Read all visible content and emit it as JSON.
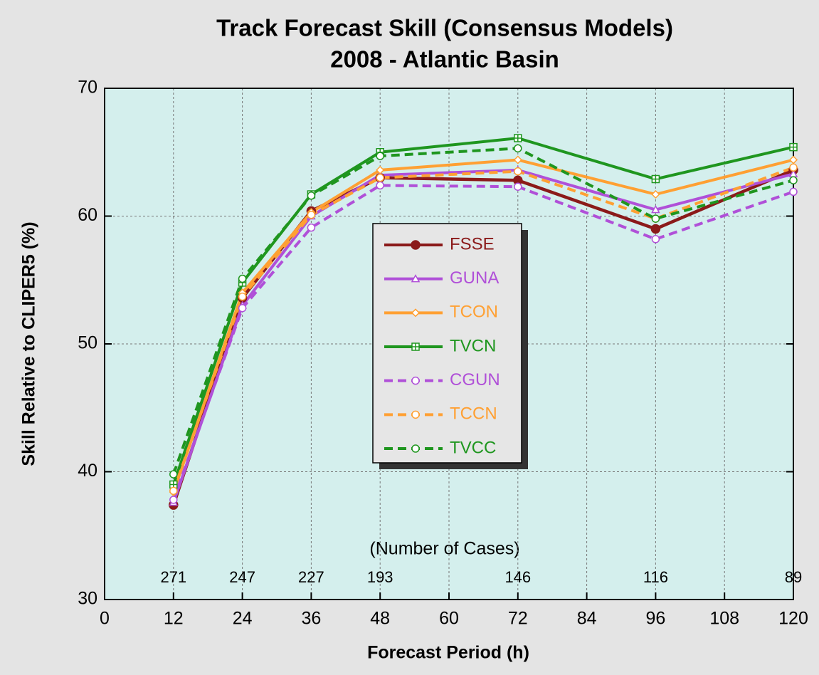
{
  "chart_data": {
    "type": "line",
    "title": "Track Forecast Skill (Consensus Models)",
    "subtitle": "2008 - Atlantic Basin",
    "x_label": "Forecast Period (h)",
    "y_label": "Skill Relative to CLIPER5 (%)",
    "x": [
      12,
      24,
      36,
      48,
      72,
      96,
      120
    ],
    "xlim": [
      0,
      120
    ],
    "xticks": [
      0,
      12,
      24,
      36,
      48,
      60,
      72,
      84,
      96,
      108,
      120
    ],
    "ylim": [
      30,
      70
    ],
    "yticks": [
      30,
      40,
      50,
      60,
      70
    ],
    "grid": true,
    "cases_title": "(Number of Cases)",
    "cases": [
      271,
      247,
      227,
      193,
      146,
      116,
      89
    ],
    "legend": "center",
    "series": [
      {
        "name": "FSSE",
        "color": "#8b1a1a",
        "dash": false,
        "marker": "filled-circle",
        "values": [
          37.4,
          53.6,
          60.4,
          63.0,
          62.8,
          59.0,
          63.6
        ]
      },
      {
        "name": "GUNA",
        "color": "#b050d8",
        "dash": false,
        "marker": "triangle",
        "values": [
          37.6,
          53.0,
          60.0,
          63.2,
          63.6,
          60.5,
          63.3
        ]
      },
      {
        "name": "TCON",
        "color": "#ffa033",
        "dash": false,
        "marker": "diamond",
        "values": [
          38.4,
          54.0,
          60.3,
          63.6,
          64.4,
          61.7,
          64.4
        ]
      },
      {
        "name": "TVCN",
        "color": "#1f961f",
        "dash": false,
        "marker": "square",
        "values": [
          39.0,
          54.8,
          61.7,
          65.0,
          66.1,
          62.9,
          65.4
        ]
      },
      {
        "name": "CGUN",
        "color": "#b050d8",
        "dash": true,
        "marker": "circle",
        "values": [
          37.8,
          52.8,
          59.1,
          62.4,
          62.3,
          58.2,
          61.9
        ]
      },
      {
        "name": "TCCN",
        "color": "#ffa033",
        "dash": true,
        "marker": "circle",
        "values": [
          38.5,
          53.7,
          60.1,
          63.0,
          63.5,
          59.8,
          63.8
        ]
      },
      {
        "name": "TVCC",
        "color": "#1f961f",
        "dash": true,
        "marker": "circle",
        "values": [
          39.8,
          55.1,
          61.6,
          64.7,
          65.3,
          59.8,
          62.8
        ]
      }
    ]
  }
}
